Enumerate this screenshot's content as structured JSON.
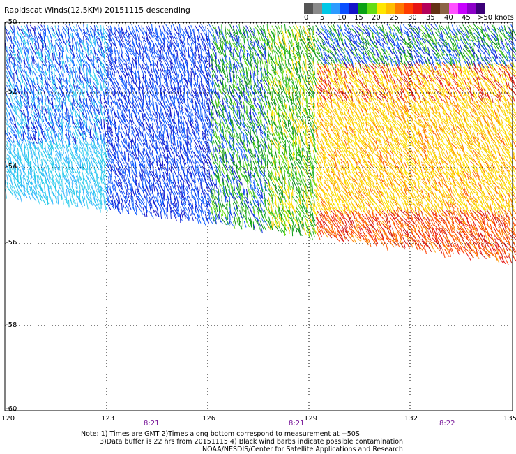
{
  "title": "Rapidscat Winds(12.5KM) 20151115 descending",
  "colorbar": {
    "colors": [
      "#555555",
      "#8a8a8a",
      "#00c8e6",
      "#2d9bff",
      "#0a50ff",
      "#1414c8",
      "#0aa014",
      "#64dc14",
      "#ffe600",
      "#ffbe00",
      "#ff7800",
      "#ff3c00",
      "#e61414",
      "#b4005a",
      "#643214",
      "#8c6446",
      "#ff50ff",
      "#c800ff",
      "#8c00c8",
      "#3c0078"
    ],
    "labels": [
      "0",
      "5",
      "10",
      "15",
      "20",
      "25",
      "30",
      "35",
      "40",
      "45",
      ">50 knots"
    ]
  },
  "lat_labels": [
    "-50",
    "-52",
    "-54",
    "-56",
    "-58",
    "-60"
  ],
  "lon_labels": [
    "120",
    "123",
    "126",
    "129",
    "132",
    "135"
  ],
  "time_labels": [
    "8:21",
    "8:21",
    "8:22"
  ],
  "notes": [
    "Note: 1) Times are GMT 2)Times along bottom correspond to measurement at −50S",
    "3)Data buffer is 22 hrs from 20151115 4) Black wind barbs indicate possible contamination",
    "NOAA/NESDIS/Center for Satellite Applications and Research"
  ]
}
